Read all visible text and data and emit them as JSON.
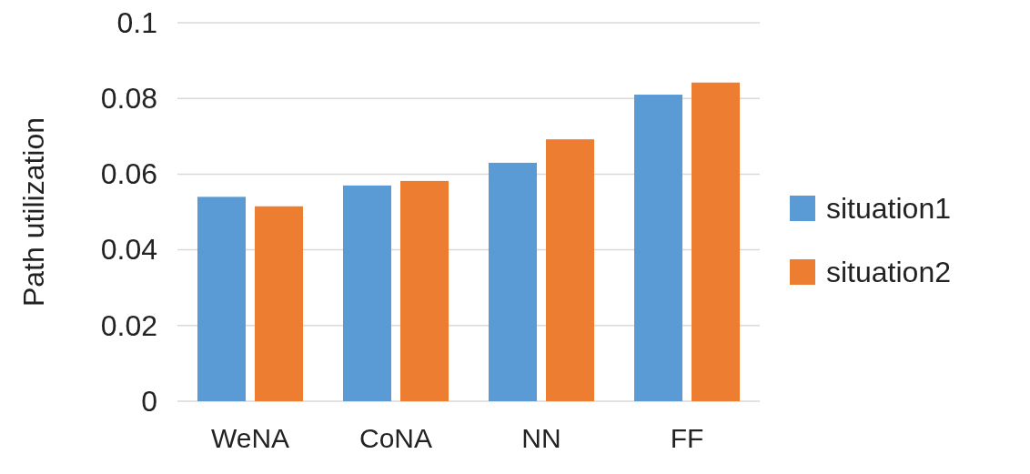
{
  "chart_data": {
    "type": "bar",
    "ylabel": "Path utilization",
    "categories": [
      "WeNA",
      "CoNA",
      "NN",
      "FF"
    ],
    "series": [
      {
        "name": "situation1",
        "color": "#5b9bd5",
        "values": [
          0.054,
          0.057,
          0.063,
          0.081
        ]
      },
      {
        "name": "situation2",
        "color": "#ed7d31",
        "values": [
          0.0515,
          0.0582,
          0.0692,
          0.0842
        ]
      }
    ],
    "ylim": [
      0,
      0.1
    ],
    "yticks": [
      0,
      0.02,
      0.04,
      0.06,
      0.08,
      0.1
    ],
    "grid": "y",
    "legend": "right"
  }
}
